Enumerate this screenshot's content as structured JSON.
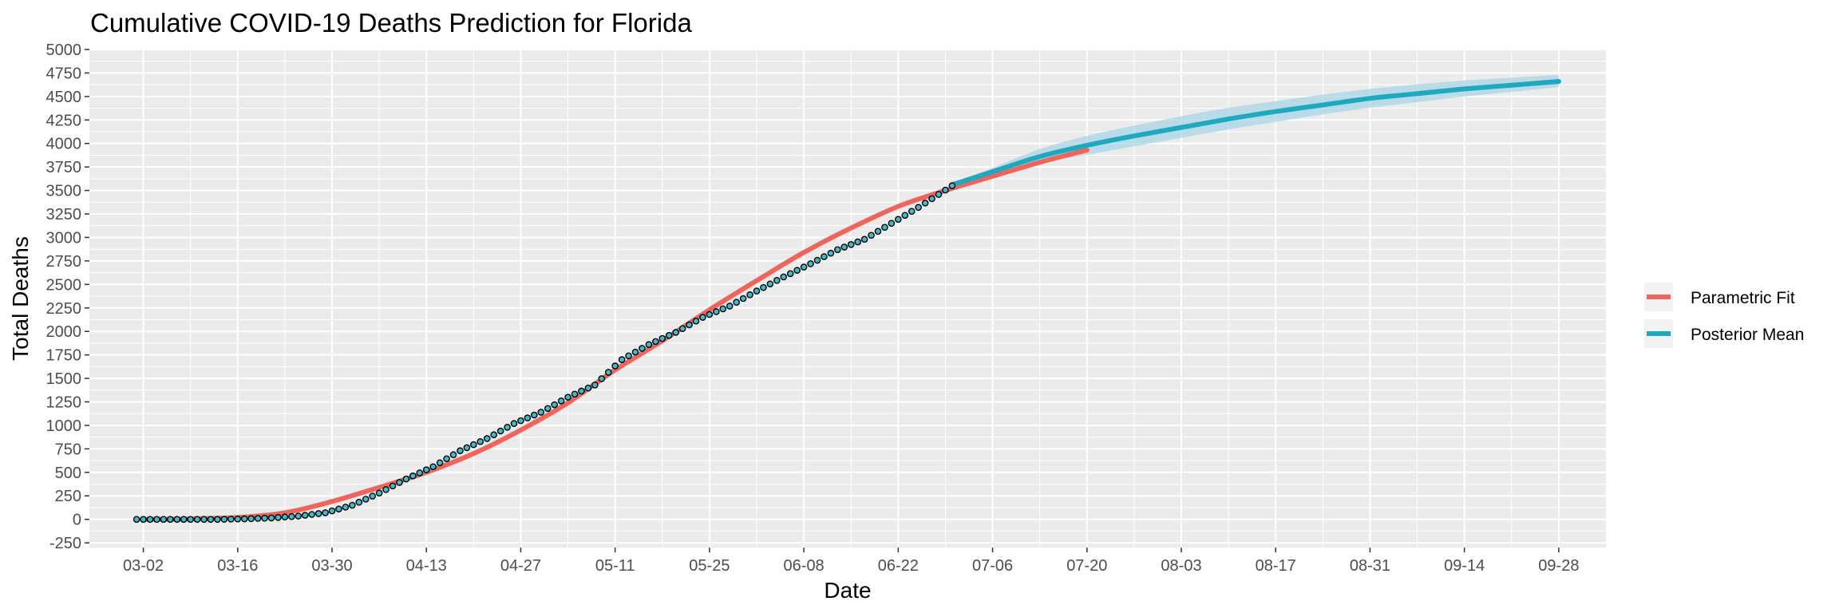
{
  "chart_data": {
    "type": "line",
    "title": "Cumulative COVID-19 Deaths Prediction for Florida",
    "xlabel": "Date",
    "ylabel": "Total Deaths",
    "x_axis": {
      "type": "date",
      "year": 2020,
      "range": [
        "2020-02-23",
        "2020-10-05"
      ],
      "tick_labels": [
        "03-02",
        "03-16",
        "03-30",
        "04-13",
        "04-27",
        "05-11",
        "05-25",
        "06-08",
        "06-22",
        "07-06",
        "07-20",
        "08-03",
        "08-17",
        "08-31",
        "09-14",
        "09-28"
      ]
    },
    "y_axis": {
      "range": [
        -300,
        5000
      ],
      "ticks": [
        -250,
        0,
        250,
        500,
        750,
        1000,
        1250,
        1500,
        1750,
        2000,
        2250,
        2500,
        2750,
        3000,
        3250,
        3500,
        3750,
        4000,
        4250,
        4500,
        4750,
        5000
      ]
    },
    "grid": true,
    "legend": {
      "placement": "right",
      "entries": [
        "Parametric Fit",
        "Posterior Mean"
      ]
    },
    "colors": {
      "parametric_fit": "#f0645c",
      "posterior_mean": "#1ea9bf",
      "band": "#a8d4e6",
      "panel": "#ebebeb",
      "grid": "#ffffff",
      "observed_fill": "#3dbdcc"
    },
    "series": [
      {
        "name": "Parametric Fit",
        "style": "line",
        "x": [
          "2020-03-02",
          "2020-03-09",
          "2020-03-16",
          "2020-03-23",
          "2020-03-30",
          "2020-04-06",
          "2020-04-13",
          "2020-04-20",
          "2020-04-27",
          "2020-05-04",
          "2020-05-11",
          "2020-05-18",
          "2020-05-25",
          "2020-06-01",
          "2020-06-08",
          "2020-06-15",
          "2020-06-22",
          "2020-06-29",
          "2020-07-06",
          "2020-07-13",
          "2020-07-20"
        ],
        "y": [
          0,
          5,
          20,
          70,
          190,
          340,
          500,
          700,
          950,
          1240,
          1590,
          1900,
          2230,
          2540,
          2840,
          3100,
          3330,
          3500,
          3650,
          3800,
          3930
        ]
      },
      {
        "name": "Posterior Mean",
        "style": "line",
        "x": [
          "2020-06-30",
          "2020-07-06",
          "2020-07-13",
          "2020-07-20",
          "2020-07-27",
          "2020-08-03",
          "2020-08-10",
          "2020-08-17",
          "2020-08-24",
          "2020-08-31",
          "2020-09-07",
          "2020-09-14",
          "2020-09-21",
          "2020-09-28"
        ],
        "y": [
          3560,
          3700,
          3860,
          3980,
          4080,
          4170,
          4260,
          4340,
          4410,
          4480,
          4530,
          4580,
          4620,
          4660
        ],
        "lower": [
          3550,
          3660,
          3790,
          3880,
          3970,
          4060,
          4150,
          4230,
          4310,
          4380,
          4440,
          4500,
          4550,
          4600
        ],
        "upper": [
          3570,
          3740,
          3940,
          4080,
          4190,
          4290,
          4380,
          4450,
          4520,
          4580,
          4630,
          4670,
          4700,
          4730
        ]
      },
      {
        "style": "points",
        "x": [
          "2020-03-01",
          "2020-03-05",
          "2020-03-09",
          "2020-03-13",
          "2020-03-17",
          "2020-03-21",
          "2020-03-25",
          "2020-03-29",
          "2020-04-02",
          "2020-04-06",
          "2020-04-10",
          "2020-04-14",
          "2020-04-18",
          "2020-04-22",
          "2020-04-26",
          "2020-04-30",
          "2020-05-04",
          "2020-05-08",
          "2020-05-12",
          "2020-05-16",
          "2020-05-20",
          "2020-05-24",
          "2020-05-28",
          "2020-06-01",
          "2020-06-05",
          "2020-06-09",
          "2020-06-13",
          "2020-06-17",
          "2020-06-21",
          "2020-06-25",
          "2020-06-30"
        ],
        "y": [
          0,
          0,
          0,
          0,
          5,
          15,
          35,
          70,
          150,
          280,
          430,
          560,
          730,
          860,
          1020,
          1140,
          1300,
          1430,
          1700,
          1860,
          1990,
          2150,
          2270,
          2430,
          2580,
          2720,
          2870,
          2980,
          3150,
          3320,
          3550
        ]
      }
    ]
  }
}
